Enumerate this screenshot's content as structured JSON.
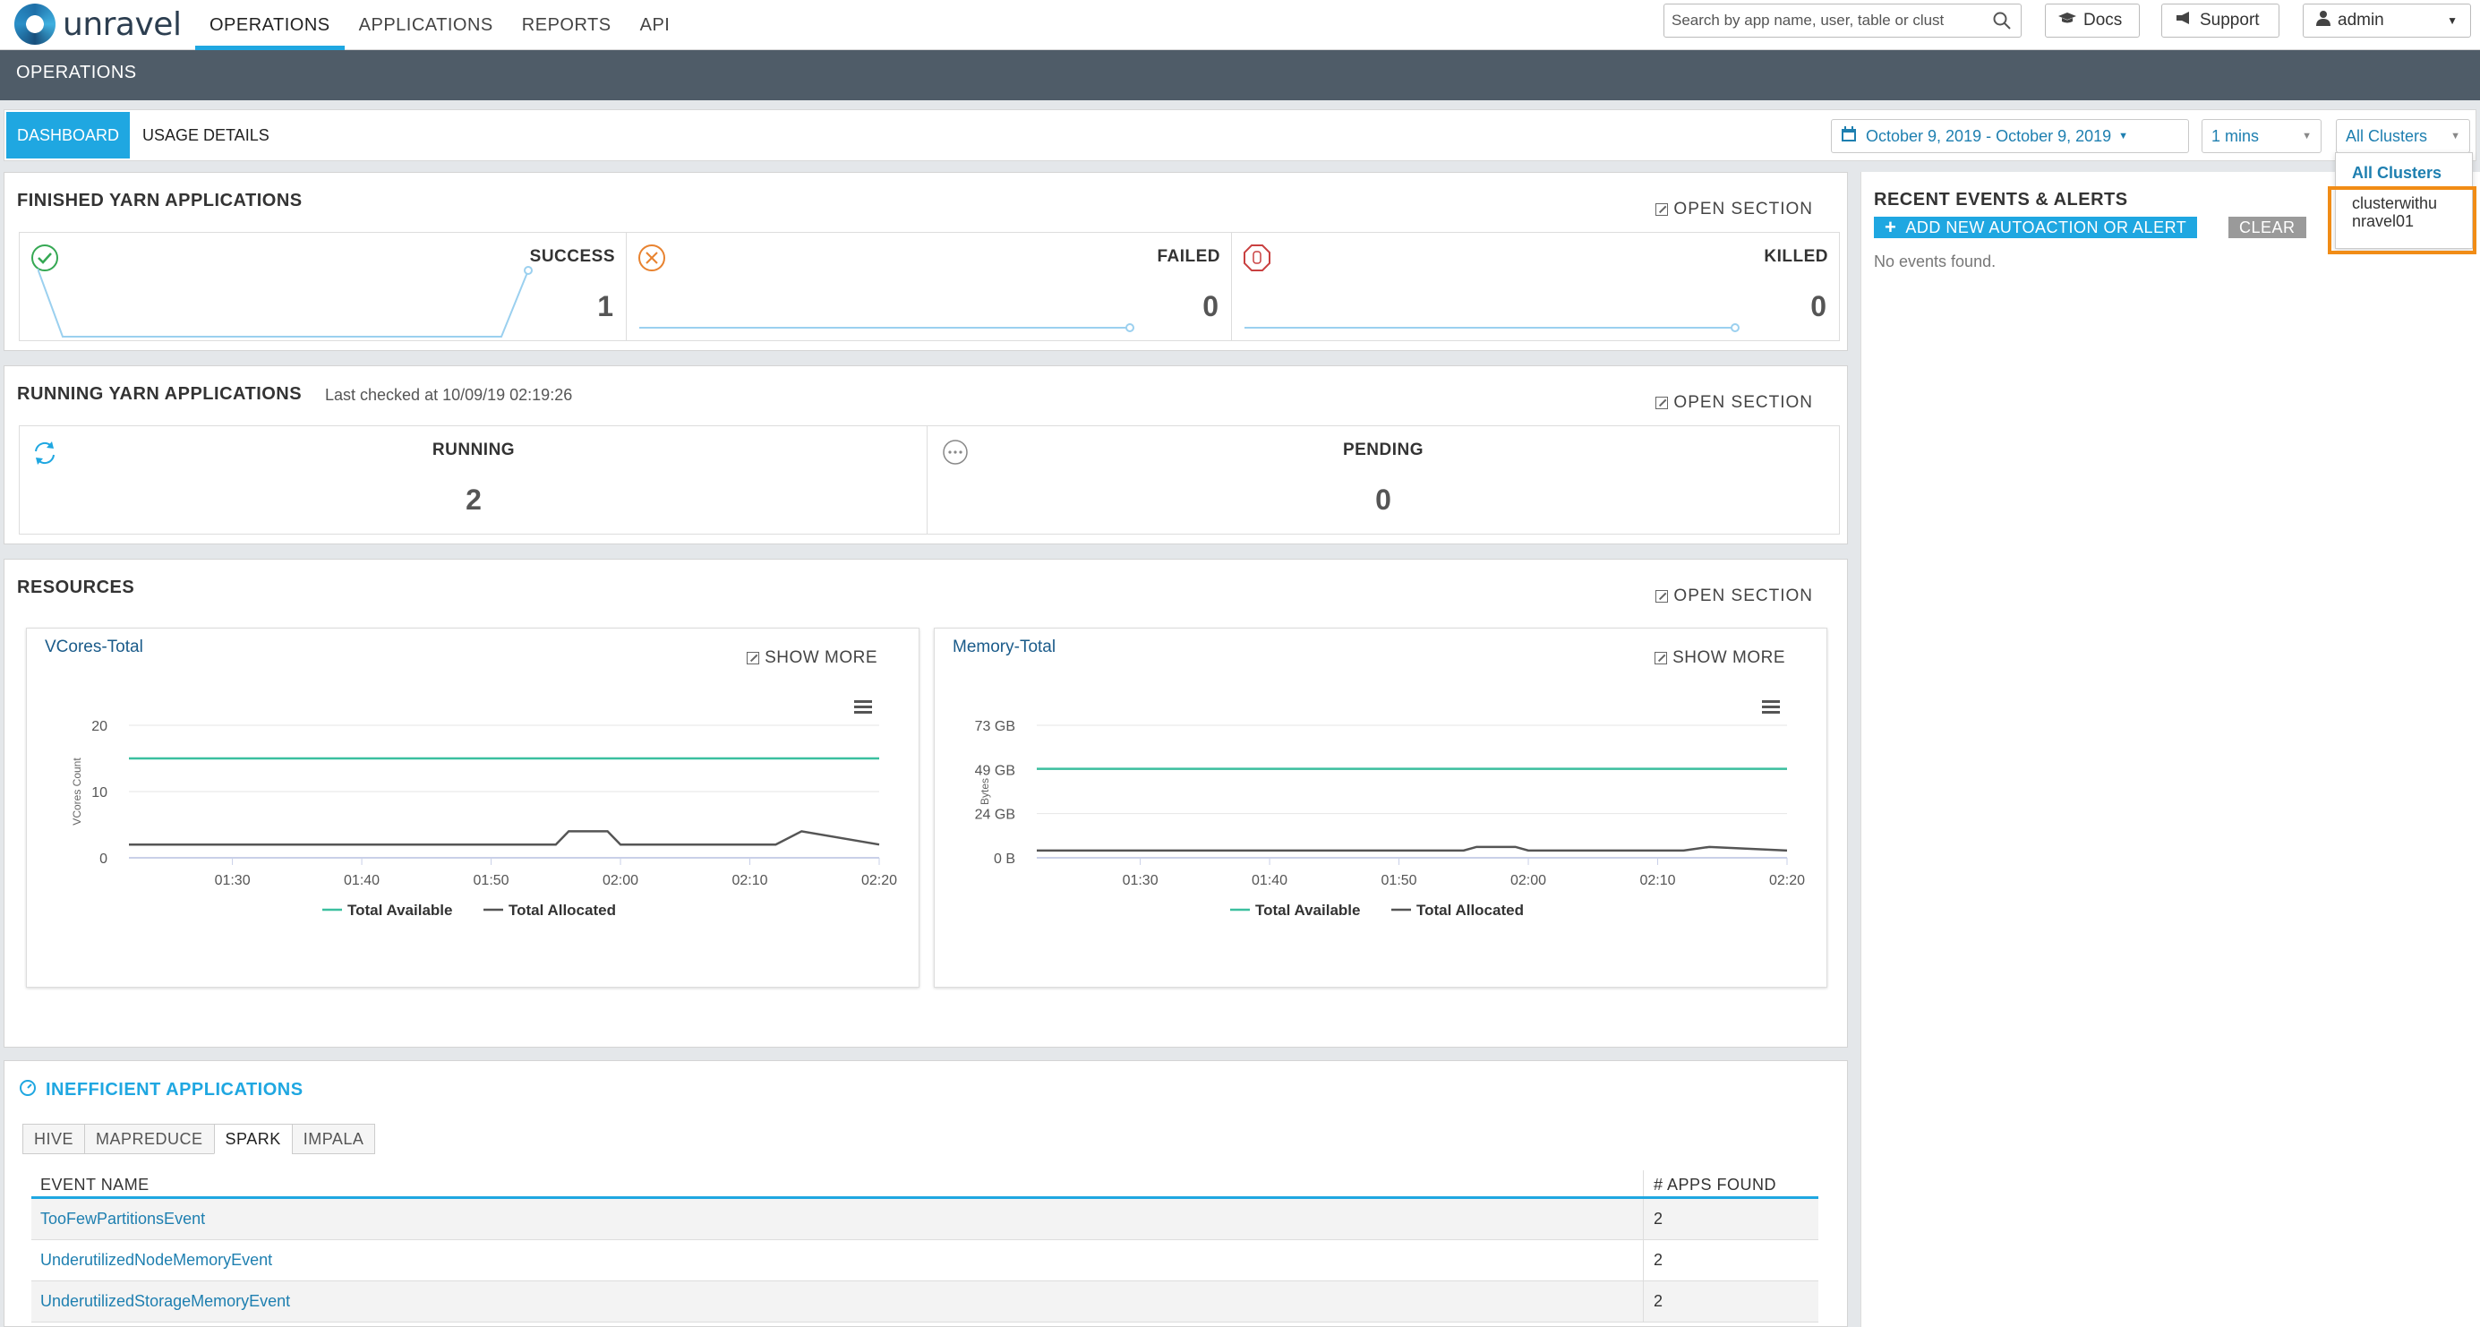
{
  "brand": "unravel",
  "nav": {
    "items": [
      {
        "label": "OPERATIONS",
        "active": true
      },
      {
        "label": "APPLICATIONS",
        "active": false
      },
      {
        "label": "REPORTS",
        "active": false
      },
      {
        "label": "API",
        "active": false
      }
    ],
    "search_placeholder": "Search by app name, user, table or clust",
    "docs": "Docs",
    "support": "Support",
    "user": "admin"
  },
  "ops_title": "OPERATIONS",
  "subnav": {
    "dashboard": "DASHBOARD",
    "usage": "USAGE DETAILS",
    "date_range": "October 9, 2019 - October 9, 2019",
    "interval": "1 mins",
    "cluster": "All Clusters"
  },
  "finished": {
    "title": "FINISHED YARN APPLICATIONS",
    "open": "OPEN SECTION",
    "success": {
      "label": "SUCCESS",
      "value": "1"
    },
    "failed": {
      "label": "FAILED",
      "value": "0"
    },
    "killed": {
      "label": "KILLED",
      "value": "0"
    }
  },
  "running": {
    "title": "RUNNING YARN APPLICATIONS",
    "checked": "Last checked at 10/09/19 02:19:26",
    "open": "OPEN SECTION",
    "running": {
      "label": "RUNNING",
      "value": "2"
    },
    "pending": {
      "label": "PENDING",
      "value": "0"
    }
  },
  "resources": {
    "title": "RESOURCES",
    "open": "OPEN SECTION",
    "show_more": "SHOW MORE"
  },
  "chart_data": [
    {
      "type": "line",
      "title": "VCores-Total",
      "ylabel": "VCores Count",
      "x": [
        "01:22",
        "01:30",
        "01:40",
        "01:50",
        "01:55",
        "01:56",
        "01:59",
        "02:00",
        "02:10",
        "02:12",
        "02:14",
        "02:20"
      ],
      "xticks": [
        "01:30",
        "01:40",
        "01:50",
        "02:00",
        "02:10",
        "02:20"
      ],
      "yticks": [
        "0",
        "10",
        "20"
      ],
      "ylim": [
        0,
        20
      ],
      "series": [
        {
          "name": "Total Available",
          "color": "#3bbf9f",
          "values": [
            15,
            15,
            15,
            15,
            15,
            15,
            15,
            15,
            15,
            15,
            15,
            15
          ]
        },
        {
          "name": "Total Allocated",
          "color": "#555555",
          "values": [
            2,
            2,
            2,
            2,
            2,
            4,
            4,
            2,
            2,
            2,
            4,
            2
          ]
        }
      ]
    },
    {
      "type": "line",
      "title": "Memory-Total",
      "ylabel": "Bytes",
      "x": [
        "01:22",
        "01:30",
        "01:40",
        "01:50",
        "01:55",
        "01:56",
        "01:59",
        "02:00",
        "02:10",
        "02:12",
        "02:14",
        "02:20"
      ],
      "xticks": [
        "01:30",
        "01:40",
        "01:50",
        "02:00",
        "02:10",
        "02:20"
      ],
      "yticks": [
        "0 B",
        "24 GB",
        "49 GB",
        "73 GB"
      ],
      "ylim": [
        0,
        73
      ],
      "series": [
        {
          "name": "Total Available",
          "color": "#3bbf9f",
          "values": [
            49,
            49,
            49,
            49,
            49,
            49,
            49,
            49,
            49,
            49,
            49,
            49
          ]
        },
        {
          "name": "Total Allocated",
          "color": "#555555",
          "values": [
            4,
            4,
            4,
            4,
            4,
            6,
            6,
            4,
            4,
            4,
            6,
            4
          ]
        }
      ]
    }
  ],
  "events": {
    "title": "RECENT EVENTS & ALERTS",
    "add": "ADD NEW AUTOACTION OR ALERT",
    "clear": "CLEAR",
    "empty": "No events found."
  },
  "dropdown": {
    "items": [
      "All Clusters",
      "clusterwithu",
      "nravel01"
    ]
  },
  "inefficient": {
    "title": "INEFFICIENT APPLICATIONS",
    "tabs": [
      "HIVE",
      "MAPREDUCE",
      "SPARK",
      "IMPALA"
    ],
    "headers": [
      "EVENT NAME",
      "# APPS FOUND"
    ],
    "rows": [
      {
        "name": "TooFewPartitionsEvent",
        "count": "2"
      },
      {
        "name": "UnderutilizedNodeMemoryEvent",
        "count": "2"
      },
      {
        "name": "UnderutilizedStorageMemoryEvent",
        "count": "2"
      }
    ]
  },
  "colors": {
    "accent": "#1fa7e1",
    "ops_bar": "#4f5c68",
    "highlight": "#f18c16"
  }
}
